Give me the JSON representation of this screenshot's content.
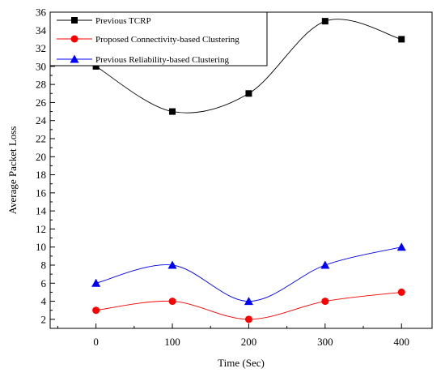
{
  "chart_data": {
    "type": "line",
    "xlabel": "Time (Sec)",
    "ylabel": "Average Packet Loss",
    "x": [
      0,
      100,
      200,
      300,
      400
    ],
    "xlim": [
      -60,
      440
    ],
    "ylim": [
      1,
      36
    ],
    "x_ticks": [
      0,
      100,
      200,
      300,
      400
    ],
    "y_ticks": [
      2,
      4,
      6,
      8,
      10,
      12,
      14,
      16,
      18,
      20,
      22,
      24,
      26,
      28,
      30,
      32,
      34,
      36
    ],
    "grid": false,
    "legend_position": "top-left",
    "smooth": true,
    "series": [
      {
        "name": "Previous TCRP",
        "values": [
          30,
          25,
          27,
          35,
          33
        ],
        "color": "#000000",
        "marker": "square"
      },
      {
        "name": "Proposed Connectivity-based Clustering",
        "values": [
          3,
          4,
          2,
          4,
          5
        ],
        "color": "#ff0000",
        "marker": "circle"
      },
      {
        "name": "Previous Reliability-based Clustering",
        "values": [
          6,
          8,
          4,
          8,
          10
        ],
        "color": "#0000ff",
        "marker": "triangle"
      }
    ]
  }
}
